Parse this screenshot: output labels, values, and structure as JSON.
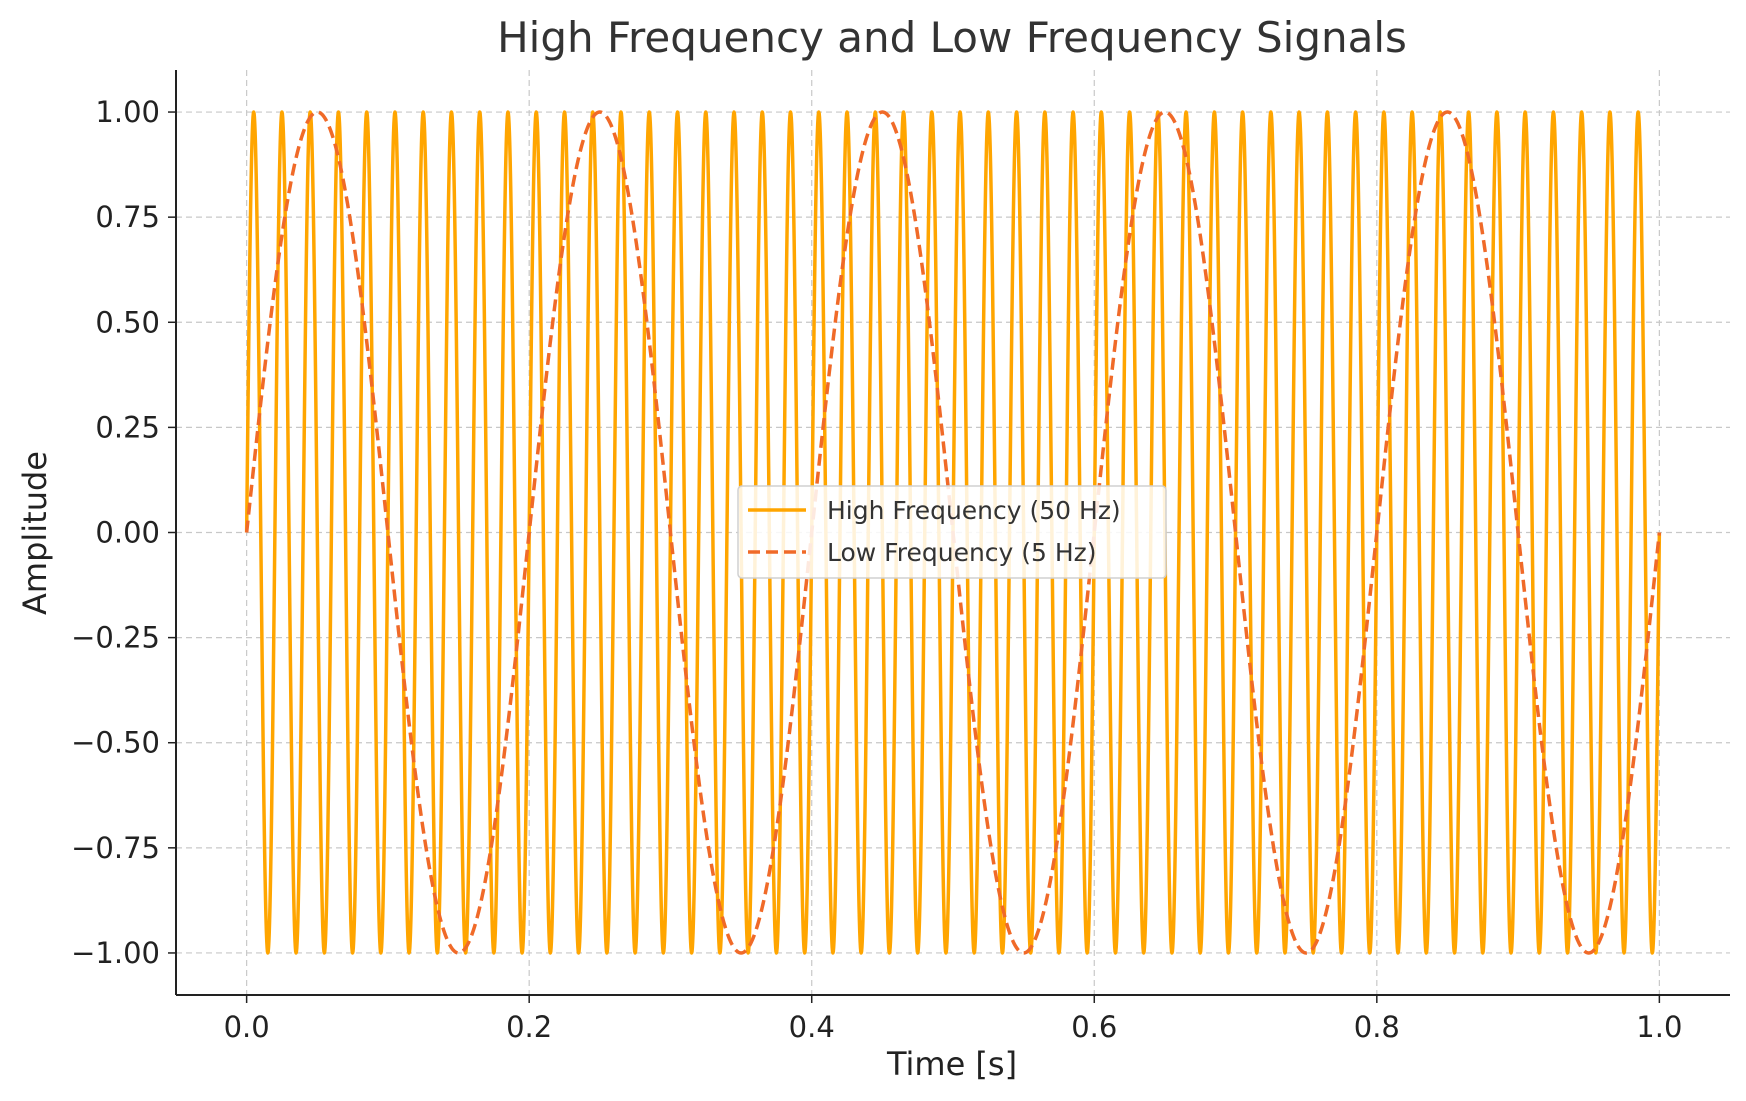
{
  "chart_data": {
    "type": "line",
    "title": "High Frequency and Low Frequency Signals",
    "xlabel": "Time [s]",
    "ylabel": "Amplitude",
    "xlim": [
      -0.05,
      1.05
    ],
    "ylim": [
      -1.1,
      1.1
    ],
    "x_ticks": [
      0.0,
      0.2,
      0.4,
      0.6,
      0.8,
      1.0
    ],
    "x_tick_labels": [
      "0.0",
      "0.2",
      "0.4",
      "0.6",
      "0.8",
      "1.0"
    ],
    "y_ticks": [
      1.0,
      0.75,
      0.5,
      0.25,
      0.0,
      -0.25,
      -0.5,
      -0.75,
      -1.0
    ],
    "y_tick_labels": [
      "1.00",
      "0.75",
      "0.50",
      "0.25",
      "0.00",
      "−0.25",
      "−0.50",
      "−0.75",
      "−1.00"
    ],
    "grid": true,
    "legend_position": "center",
    "series": [
      {
        "name": "High Frequency (50 Hz)",
        "function": "sine",
        "frequency_hz": 50,
        "amplitude": 1,
        "x_range": [
          0,
          1
        ],
        "color": "#FFA500",
        "line_style": "solid"
      },
      {
        "name": "Low Frequency (5 Hz)",
        "function": "sine",
        "frequency_hz": 5,
        "amplitude": 1,
        "x_range": [
          0,
          1
        ],
        "color": "#F06A28",
        "line_style": "dashed"
      }
    ]
  }
}
